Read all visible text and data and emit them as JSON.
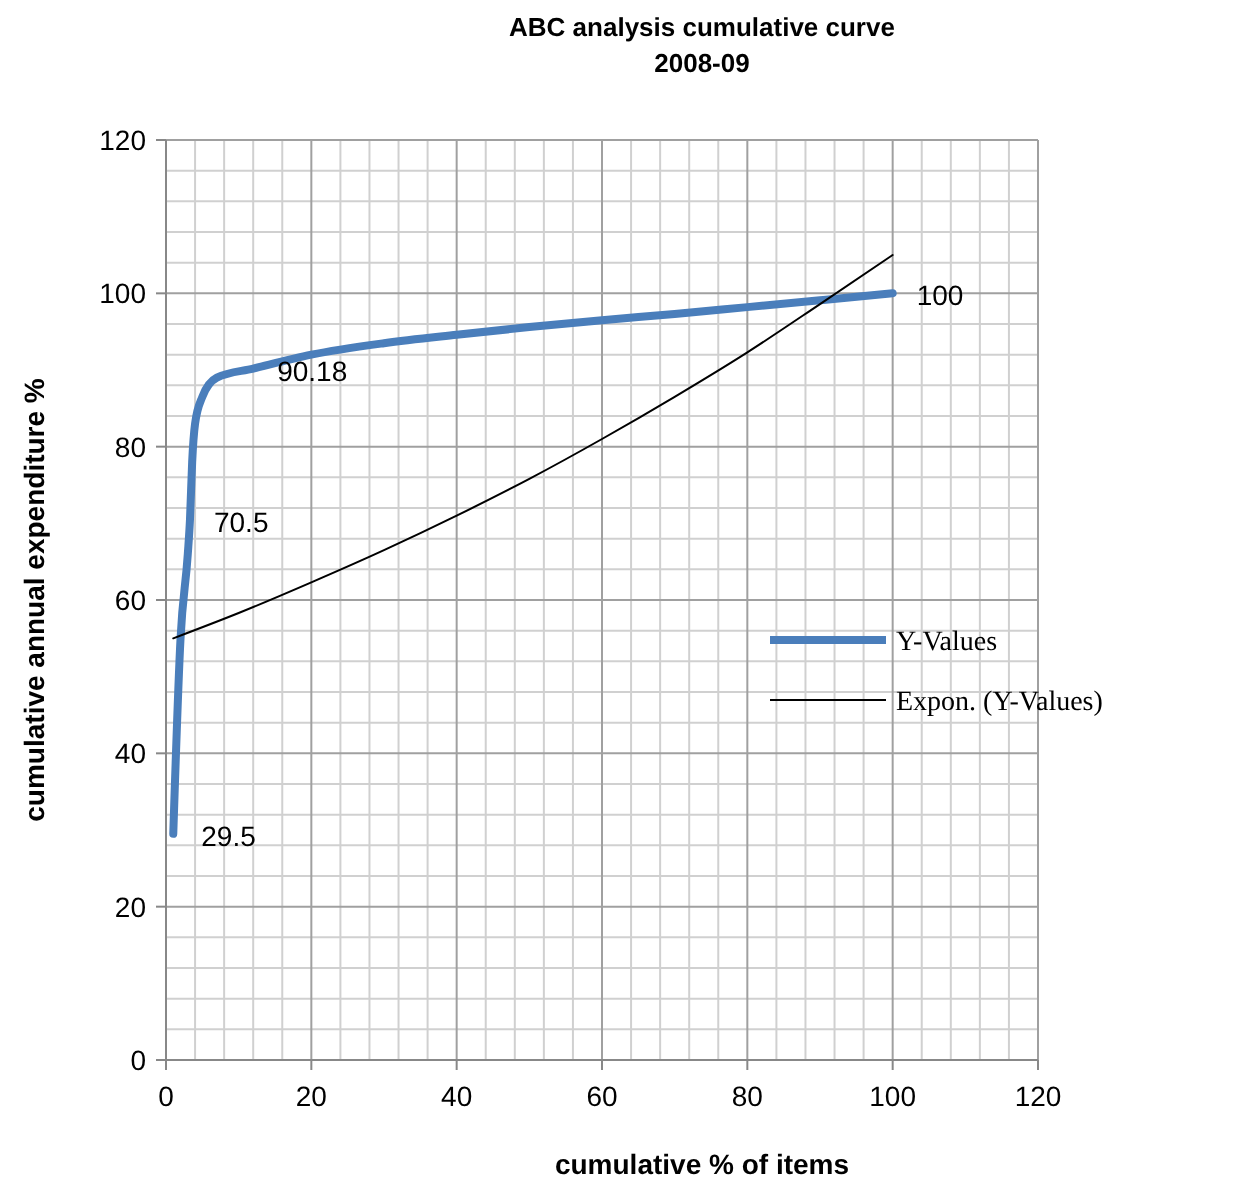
{
  "chart_data": {
    "type": "line",
    "title": "ABC analysis cumulative curve\n2008-09",
    "xlabel": "cumulative % of items",
    "ylabel": "cumulative annual  expenditure %",
    "xlim": [
      0,
      120
    ],
    "xticks": [
      0,
      20,
      40,
      60,
      80,
      100,
      120
    ],
    "ylim": [
      0,
      120
    ],
    "yticks": [
      0,
      20,
      40,
      60,
      80,
      100,
      120
    ],
    "grid": true,
    "legend": "right",
    "marker": "none",
    "series": [
      {
        "name": "Y-Values",
        "color": "#4a7ebb",
        "x": [
          1,
          2,
          3,
          3.3,
          3.6,
          4,
          5,
          7,
          12,
          20,
          30,
          40,
          50,
          60,
          70,
          80,
          90,
          100
        ],
        "values": [
          29.5,
          55,
          66,
          70.5,
          78,
          83,
          86.5,
          89,
          90.18,
          92,
          93.5,
          94.6,
          95.6,
          96.5,
          97.3,
          98.2,
          99.1,
          100
        ],
        "value_labels": [
          "29.5",
          null,
          null,
          "70.5",
          null,
          null,
          null,
          null,
          "90.18",
          null,
          null,
          null,
          null,
          null,
          null,
          null,
          null,
          "100"
        ]
      },
      {
        "name": "Expon. (Y-Values)",
        "color": "#000000",
        "x": [
          1,
          10,
          20,
          30,
          40,
          50,
          60,
          70,
          80,
          90,
          100
        ],
        "values": [
          55,
          58.3,
          62.3,
          66.5,
          71,
          75.8,
          81,
          86.5,
          92.3,
          98.6,
          105
        ]
      }
    ]
  }
}
